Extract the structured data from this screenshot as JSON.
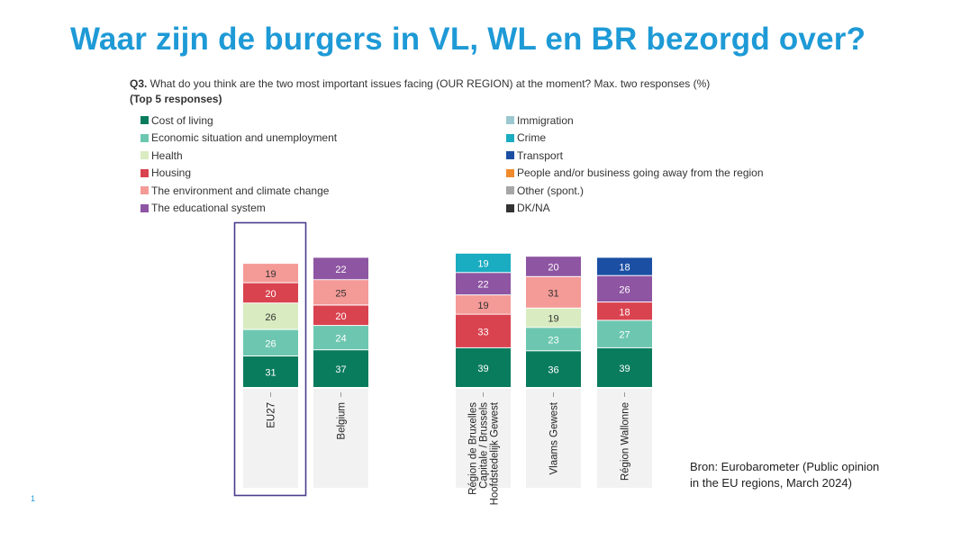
{
  "slide": {
    "title": "Waar zijn de burgers in VL, WL en BR bezorgd over?",
    "question_num": "Q3.",
    "question_text": " What do you think are the two most important issues facing (OUR REGION) at the moment? Max. two responses (%)",
    "subtitle": "(Top 5 responses)",
    "source_line1": "Bron: Eurobarometer (Public opinion",
    "source_line2": "in the EU regions, March 2024)",
    "page_number": "1"
  },
  "legend": {
    "left": [
      {
        "label": "Cost of living",
        "color": "#0a7c5e"
      },
      {
        "label": "Economic situation and unemployment",
        "color": "#6dc7b0"
      },
      {
        "label": "Health",
        "color": "#d9ebc0"
      },
      {
        "label": "Housing",
        "color": "#d9434f"
      },
      {
        "label": "The environment and climate change",
        "color": "#f49a97"
      },
      {
        "label": "The educational system",
        "color": "#8e55a2"
      }
    ],
    "right": [
      {
        "label": "Immigration",
        "color": "#9cc8d0"
      },
      {
        "label": "Crime",
        "color": "#1aacc0"
      },
      {
        "label": "Transport",
        "color": "#1a4fa3"
      },
      {
        "label": "People and/or business going away from the region",
        "color": "#f08a2a"
      },
      {
        "label": "Other (spont.)",
        "color": "#a6a6a6"
      },
      {
        "label": "DK/NA",
        "color": "#333333"
      }
    ]
  },
  "chart_data": {
    "type": "bar",
    "stacked": true,
    "title": "Q3. What do you think are the two most important issues facing (OUR REGION) at the moment? Max. two responses (%)",
    "subtitle": "(Top 5 responses)",
    "unit": "%",
    "highlighted_category": "EU27",
    "categories": [
      "EU27",
      "Belgium",
      "Région de Bruxelles Capitale / Brussels Hoofdstedelijk Gewest",
      "Vlaams Gewest",
      "Région Wallonne"
    ],
    "category_label_lines": [
      [
        "EU27"
      ],
      [
        "Belgium"
      ],
      [
        "Région de Bruxelles",
        "Capitale / Brussels",
        "Hoofdstedelijk Gewest"
      ],
      [
        "Vlaams Gewest"
      ],
      [
        "Région Wallonne"
      ]
    ],
    "bars": [
      {
        "category": "EU27",
        "segments": [
          {
            "series": "Cost of living",
            "value": 31
          },
          {
            "series": "Economic situation and unemployment",
            "value": 26
          },
          {
            "series": "Health",
            "value": 26
          },
          {
            "series": "Housing",
            "value": 20
          },
          {
            "series": "The environment and climate change",
            "value": 19
          }
        ]
      },
      {
        "category": "Belgium",
        "segments": [
          {
            "series": "Cost of living",
            "value": 37
          },
          {
            "series": "Economic situation and unemployment",
            "value": 24
          },
          {
            "series": "Housing",
            "value": 20
          },
          {
            "series": "The environment and climate change",
            "value": 25
          },
          {
            "series": "The educational system",
            "value": 22
          }
        ]
      },
      {
        "category": "Région de Bruxelles Capitale / Brussels Hoofdstedelijk Gewest",
        "segments": [
          {
            "series": "Cost of living",
            "value": 39
          },
          {
            "series": "Housing",
            "value": 33
          },
          {
            "series": "The environment and climate change",
            "value": 19
          },
          {
            "series": "The educational system",
            "value": 22
          },
          {
            "series": "Crime",
            "value": 19
          }
        ]
      },
      {
        "category": "Vlaams Gewest",
        "segments": [
          {
            "series": "Cost of living",
            "value": 36
          },
          {
            "series": "Economic situation and unemployment",
            "value": 23
          },
          {
            "series": "Health",
            "value": 19
          },
          {
            "series": "The environment and climate change",
            "value": 31
          },
          {
            "series": "The educational system",
            "value": 20
          }
        ]
      },
      {
        "category": "Région Wallonne",
        "segments": [
          {
            "series": "Cost of living",
            "value": 39
          },
          {
            "series": "Economic situation and unemployment",
            "value": 27
          },
          {
            "series": "Housing",
            "value": 18
          },
          {
            "series": "The educational system",
            "value": 26
          },
          {
            "series": "Transport",
            "value": 18
          }
        ]
      }
    ]
  }
}
